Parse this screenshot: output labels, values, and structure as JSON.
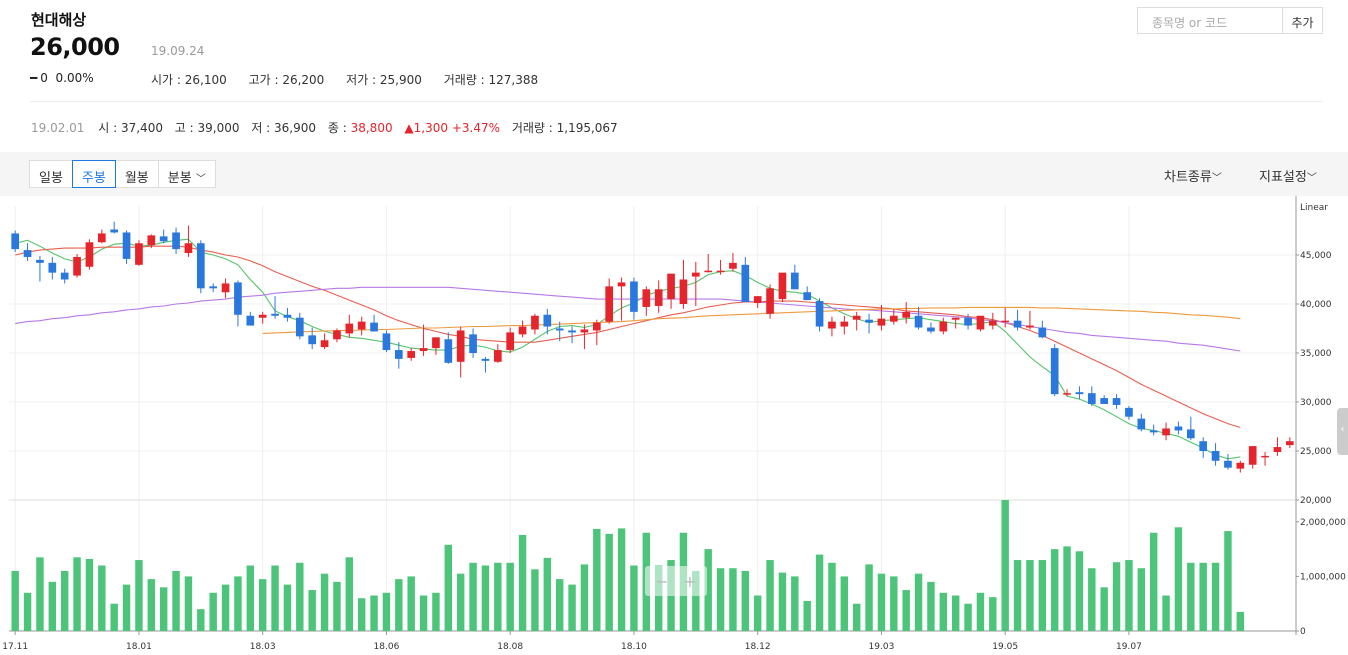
{
  "header": {
    "name": "현대해상",
    "price": "26,000",
    "date": "19.09.24",
    "change_symbol": "━",
    "change_value": "0",
    "change_pct": "0.00%",
    "open": "시가 : 26,100",
    "high": "고가 : 26,200",
    "low": "저가 : 25,900",
    "volume": "거래량 : 127,388"
  },
  "search": {
    "placeholder": "종목명 or 코드",
    "add_label": "추가"
  },
  "hover_info": {
    "date": "19.02.01",
    "open": "시 : 37,400",
    "high": "고 : 39,000",
    "low": "저 : 36,900",
    "close_label": "종 :",
    "close": "38,800",
    "change": "▲1,300 +3.47%",
    "volume": "거래량 : 1,195,067"
  },
  "toolbar": {
    "tabs": [
      "일봉",
      "주봉",
      "월봉",
      "분봉"
    ],
    "active_tab": "주봉",
    "chart_type_label": "차트종류",
    "indicator_label": "지표설정"
  },
  "colors": {
    "up": "#e5242c",
    "down": "#2a77dd",
    "volume": "#4cc47a",
    "ma5": "#55c46a",
    "ma20": "#e95e4e",
    "ma60": "#b879e6",
    "ma120": "#f09a3e",
    "active_tab": "#1e7ae0"
  },
  "chart_data": {
    "type": "candlestick",
    "scale_label": "Linear",
    "y_ticks": [
      20000,
      25000,
      30000,
      35000,
      40000,
      45000
    ],
    "y_tick_labels": [
      "20,000",
      "25,000",
      "30,000",
      "35,000",
      "40,000",
      "45,000"
    ],
    "ylim": [
      20000,
      50000
    ],
    "volume_ticks": [
      0,
      1000000,
      2000000
    ],
    "volume_tick_labels": [
      "0",
      "1,000,000",
      "2,000,000"
    ],
    "volume_ylim": [
      0,
      2400000
    ],
    "x_labels": [
      {
        "i": 0,
        "label": "17.11"
      },
      {
        "i": 10,
        "label": "18.01"
      },
      {
        "i": 20,
        "label": "18.03"
      },
      {
        "i": 30,
        "label": "18.06"
      },
      {
        "i": 40,
        "label": "18.08"
      },
      {
        "i": 50,
        "label": "18.10"
      },
      {
        "i": 60,
        "label": "18.12"
      },
      {
        "i": 70,
        "label": "19.03"
      },
      {
        "i": 80,
        "label": "19.05"
      },
      {
        "i": 90,
        "label": "19.07"
      }
    ],
    "ohlc": [
      [
        47200,
        47500,
        45300,
        45600
      ],
      [
        45500,
        46200,
        44400,
        44800
      ],
      [
        44500,
        44900,
        42300,
        44200
      ],
      [
        44200,
        44800,
        42500,
        43200
      ],
      [
        43200,
        43600,
        42100,
        42500
      ],
      [
        42900,
        45100,
        42700,
        44800
      ],
      [
        43800,
        46600,
        43500,
        46300
      ],
      [
        46300,
        47600,
        46200,
        47200
      ],
      [
        47600,
        48400,
        47200,
        47300
      ],
      [
        47300,
        47500,
        44100,
        44600
      ],
      [
        44000,
        46500,
        43900,
        46200
      ],
      [
        46000,
        47100,
        45700,
        47000
      ],
      [
        46900,
        47600,
        46200,
        46400
      ],
      [
        47300,
        47800,
        45100,
        45600
      ],
      [
        45200,
        48000,
        44800,
        46200
      ],
      [
        46200,
        46500,
        41100,
        41600
      ],
      [
        41800,
        42100,
        41200,
        41600
      ],
      [
        41200,
        42600,
        40600,
        42100
      ],
      [
        42200,
        42400,
        37700,
        38900
      ],
      [
        38800,
        39200,
        37800,
        37800
      ],
      [
        38600,
        39200,
        38000,
        38900
      ],
      [
        39000,
        40800,
        38500,
        38800
      ],
      [
        38900,
        39600,
        38200,
        38600
      ],
      [
        38600,
        39100,
        36400,
        36700
      ],
      [
        36800,
        37600,
        35400,
        35900
      ],
      [
        35600,
        37000,
        35400,
        36300
      ],
      [
        36400,
        37500,
        36100,
        37300
      ],
      [
        37000,
        38900,
        36600,
        38000
      ],
      [
        37400,
        38700,
        36800,
        38200
      ],
      [
        38100,
        38900,
        37200,
        37200
      ],
      [
        37000,
        37300,
        35100,
        35300
      ],
      [
        35300,
        36100,
        33400,
        34400
      ],
      [
        34500,
        35500,
        34200,
        35200
      ],
      [
        35200,
        37900,
        34700,
        35500
      ],
      [
        35500,
        36600,
        34800,
        36600
      ],
      [
        36400,
        37100,
        33900,
        34000
      ],
      [
        34100,
        37700,
        32500,
        37300
      ],
      [
        36900,
        37500,
        34500,
        35000
      ],
      [
        34400,
        34600,
        33000,
        34200
      ],
      [
        34100,
        35900,
        34000,
        35300
      ],
      [
        35300,
        37600,
        35000,
        37100
      ],
      [
        36900,
        38300,
        36600,
        37700
      ],
      [
        37400,
        39000,
        36900,
        38800
      ],
      [
        38900,
        39500,
        36900,
        37700
      ],
      [
        37500,
        38200,
        36200,
        37300
      ],
      [
        37300,
        37700,
        36000,
        37100
      ],
      [
        37100,
        37900,
        35400,
        37400
      ],
      [
        37300,
        38400,
        35800,
        38100
      ],
      [
        38200,
        42600,
        38000,
        41800
      ],
      [
        41800,
        42700,
        38300,
        42200
      ],
      [
        42300,
        42700,
        38400,
        39200
      ],
      [
        39700,
        41800,
        38800,
        41500
      ],
      [
        39800,
        42400,
        39100,
        41500
      ],
      [
        40500,
        42900,
        39500,
        43100
      ],
      [
        40000,
        44500,
        39500,
        42500
      ],
      [
        42800,
        44300,
        39800,
        43200
      ],
      [
        43300,
        45100,
        43200,
        43400
      ],
      [
        43300,
        44500,
        43000,
        43400
      ],
      [
        43600,
        45200,
        43300,
        44200
      ],
      [
        44000,
        44800,
        40200,
        40200
      ],
      [
        40100,
        40800,
        39600,
        40800
      ],
      [
        39000,
        42000,
        38500,
        41600
      ],
      [
        40500,
        43000,
        40200,
        43200
      ],
      [
        43200,
        44000,
        41500,
        41500
      ],
      [
        41200,
        41800,
        40400,
        40400
      ],
      [
        40300,
        40600,
        37200,
        37700
      ],
      [
        37500,
        38700,
        36700,
        38200
      ],
      [
        37700,
        38800,
        36900,
        38200
      ],
      [
        38400,
        39200,
        37300,
        38800
      ],
      [
        38400,
        39000,
        37000,
        38100
      ],
      [
        37800,
        39900,
        37300,
        38500
      ],
      [
        38200,
        39500,
        37900,
        38800
      ],
      [
        38600,
        40200,
        38000,
        39200
      ],
      [
        38800,
        39700,
        37400,
        37600
      ],
      [
        37600,
        38100,
        37000,
        37200
      ],
      [
        37200,
        38600,
        36900,
        38200
      ],
      [
        38400,
        38600,
        37500,
        38600
      ],
      [
        38600,
        39000,
        37400,
        37800
      ],
      [
        37400,
        38700,
        37200,
        38800
      ],
      [
        37800,
        39100,
        37400,
        38300
      ],
      [
        38300,
        39600,
        37600,
        38300
      ],
      [
        38300,
        39400,
        37300,
        37600
      ],
      [
        37600,
        39300,
        37400,
        37800
      ],
      [
        37600,
        38300,
        36500,
        36600
      ],
      [
        35500,
        35900,
        30600,
        30800
      ],
      [
        30800,
        31300,
        30600,
        30900
      ],
      [
        31000,
        31600,
        30300,
        30800
      ],
      [
        30900,
        31600,
        29600,
        29800
      ],
      [
        30400,
        30700,
        29800,
        29800
      ],
      [
        30400,
        30800,
        29300,
        29700
      ],
      [
        29400,
        29600,
        28200,
        28500
      ],
      [
        28300,
        28800,
        27000,
        27200
      ],
      [
        27100,
        27700,
        26600,
        26900
      ],
      [
        26600,
        27900,
        26100,
        27300
      ],
      [
        27500,
        28000,
        26700,
        27100
      ],
      [
        27200,
        28500,
        26100,
        26300
      ],
      [
        26000,
        26400,
        24300,
        25000
      ],
      [
        25000,
        25800,
        23500,
        24000
      ],
      [
        24000,
        24700,
        23100,
        23300
      ],
      [
        23200,
        24000,
        22800,
        23800
      ],
      [
        23600,
        25400,
        23200,
        25500
      ],
      [
        24400,
        24900,
        23500,
        24500
      ],
      [
        24900,
        26400,
        24500,
        25400
      ],
      [
        25600,
        26400,
        25300,
        26000
      ]
    ],
    "volume": [
      1100000,
      700000,
      1350000,
      900000,
      1100000,
      1350000,
      1320000,
      1200000,
      500000,
      850000,
      1300000,
      950000,
      800000,
      1100000,
      1000000,
      400000,
      700000,
      850000,
      1000000,
      1200000,
      950000,
      1200000,
      850000,
      1250000,
      750000,
      1050000,
      900000,
      1350000,
      600000,
      650000,
      700000,
      950000,
      1000000,
      650000,
      700000,
      1580000,
      1050000,
      1250000,
      1200000,
      1250000,
      1250000,
      1760000,
      1130000,
      1340000,
      950000,
      850000,
      1220000,
      1870000,
      1780000,
      1880000,
      1200000,
      1800000,
      1200000,
      1300000,
      1800000,
      1100000,
      1500000,
      1150000,
      1150000,
      1100000,
      650000,
      1300000,
      1070000,
      1000000,
      550000,
      1400000,
      1250000,
      1000000,
      500000,
      1220000,
      1050000,
      1000000,
      750000,
      1050000,
      900000,
      700000,
      650000,
      500000,
      700000,
      620000,
      2400000,
      1300000,
      1300000,
      1300000,
      1500000,
      1550000,
      1460000,
      1150000,
      800000,
      1260000,
      1300000,
      1150000,
      1800000,
      650000,
      1900000,
      1250000,
      1250000,
      1250000,
      1830000,
      350000
    ],
    "series": [
      {
        "name": "ma5",
        "start": 0,
        "values": [
          46200,
          46500,
          45900,
          45200,
          44600,
          44300,
          44800,
          45600,
          46100,
          46200,
          45900,
          46000,
          46300,
          46500,
          46600,
          45300,
          45000,
          44600,
          44000,
          42500,
          41200,
          39300,
          38700,
          38300,
          37700,
          37200,
          36900,
          36600,
          36500,
          36300,
          36100,
          35800,
          35500,
          35400,
          35300,
          35300,
          35700,
          35800,
          35600,
          35200,
          35100,
          35600,
          36400,
          37200,
          37700,
          37800,
          37600,
          37900,
          38800,
          39600,
          40100,
          40900,
          41300,
          41600,
          41800,
          42200,
          43000,
          43300,
          43400,
          42900,
          42200,
          41600,
          41300,
          41200,
          41000,
          40300,
          39600,
          39000,
          38500,
          38100,
          38300,
          38400,
          38500,
          38600,
          38400,
          38200,
          38000,
          37900,
          38000,
          38200,
          37200,
          35900,
          34600,
          33600,
          32700,
          30600,
          30300,
          29800,
          29200,
          28500,
          27800,
          27300,
          27100,
          26800,
          26500,
          25900,
          25300,
          24600,
          24200,
          24400
        ]
      },
      {
        "name": "ma20",
        "start": 0,
        "values": [
          45000,
          45300,
          45500,
          45600,
          45700,
          45700,
          45700,
          45800,
          45800,
          45800,
          45800,
          45900,
          45900,
          45900,
          45800,
          45500,
          45300,
          45000,
          44800,
          44400,
          43900,
          43300,
          42800,
          42300,
          41800,
          41400,
          40900,
          40400,
          39900,
          39400,
          38800,
          38300,
          37900,
          37500,
          37200,
          36900,
          36700,
          36400,
          36300,
          36200,
          36100,
          36100,
          36100,
          36300,
          36500,
          36700,
          36900,
          37100,
          37400,
          37700,
          38000,
          38300,
          38600,
          38900,
          39100,
          39400,
          39700,
          39900,
          40100,
          40200,
          40200,
          40300,
          40300,
          40300,
          40200,
          40100,
          40000,
          39900,
          39800,
          39700,
          39600,
          39500,
          39300,
          39200,
          39100,
          39000,
          38900,
          38700,
          38600,
          38400,
          38100,
          37700,
          37300,
          36800,
          36200,
          35600,
          35000,
          34400,
          33800,
          33200,
          32500,
          31800,
          31200,
          30600,
          30000,
          29400,
          28800,
          28300,
          27800,
          27400
        ]
      },
      {
        "name": "ma60",
        "start": 0,
        "values": [
          38000,
          38200,
          38300,
          38500,
          38600,
          38800,
          38900,
          39100,
          39200,
          39400,
          39500,
          39700,
          39800,
          40000,
          40100,
          40300,
          40400,
          40500,
          40700,
          40800,
          40900,
          41100,
          41200,
          41300,
          41400,
          41500,
          41600,
          41600,
          41700,
          41700,
          41700,
          41700,
          41700,
          41700,
          41700,
          41700,
          41600,
          41500,
          41400,
          41300,
          41200,
          41100,
          41000,
          40900,
          40800,
          40700,
          40600,
          40500,
          40500,
          40500,
          40500,
          40500,
          40500,
          40500,
          40500,
          40500,
          40500,
          40500,
          40400,
          40300,
          40200,
          40100,
          40000,
          39900,
          39800,
          39700,
          39600,
          39500,
          39400,
          39400,
          39300,
          39200,
          39100,
          39000,
          38900,
          38800,
          38700,
          38600,
          38400,
          38300,
          38100,
          37900,
          37700,
          37500,
          37300,
          37100,
          37000,
          36800,
          36700,
          36600,
          36500,
          36400,
          36300,
          36200,
          36000,
          35900,
          35800,
          35600,
          35400,
          35200
        ]
      },
      {
        "name": "ma120",
        "start": 20,
        "values": [
          37000,
          37050,
          37100,
          37150,
          37200,
          37250,
          37300,
          37300,
          37350,
          37400,
          37400,
          37450,
          37500,
          37550,
          37550,
          37600,
          37650,
          37700,
          37700,
          37750,
          37800,
          37800,
          37850,
          37900,
          37950,
          38000,
          38050,
          38100,
          38150,
          38200,
          38300,
          38400,
          38500,
          38550,
          38600,
          38700,
          38800,
          38850,
          38900,
          38950,
          39000,
          39050,
          39100,
          39150,
          39200,
          39250,
          39300,
          39350,
          39400,
          39450,
          39500,
          39500,
          39550,
          39550,
          39600,
          39600,
          39600,
          39650,
          39650,
          39650,
          39650,
          39650,
          39650,
          39600,
          39600,
          39550,
          39500,
          39450,
          39400,
          39350,
          39300,
          39250,
          39150,
          39100,
          39000,
          38900,
          38850,
          38750,
          38650,
          38500
        ]
      }
    ]
  }
}
